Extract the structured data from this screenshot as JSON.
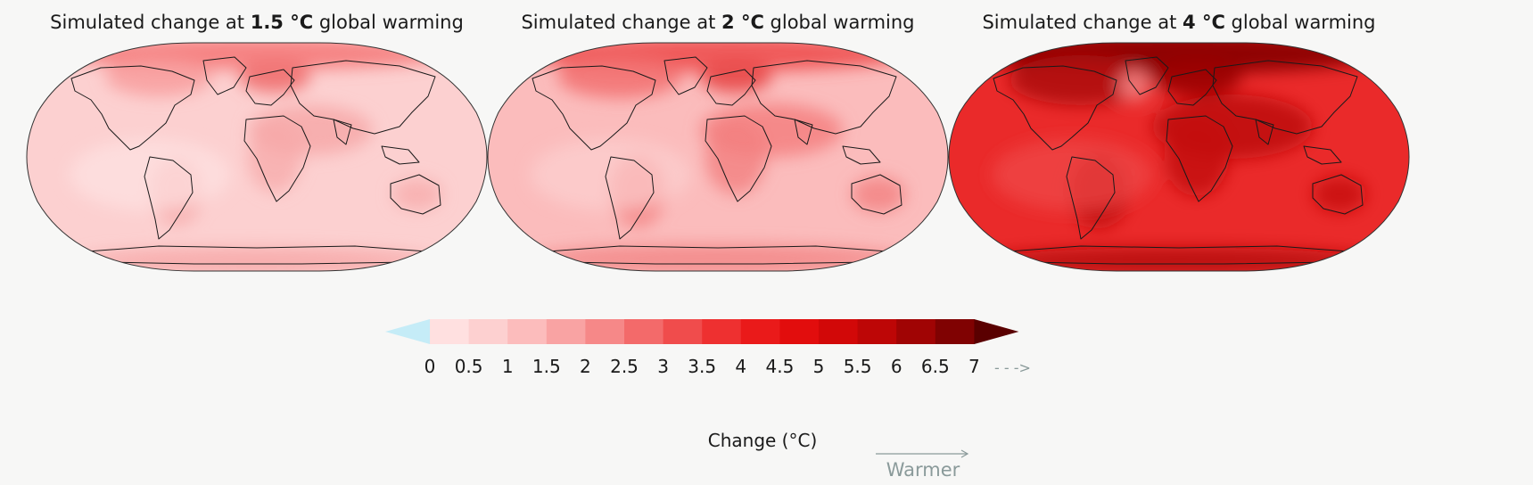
{
  "panels": [
    {
      "title_prefix": "Simulated change at",
      "level": "1.5 °C",
      "title_suffix": "global warming"
    },
    {
      "title_prefix": "Simulated change at",
      "level": "2 °C",
      "title_suffix": "global warming"
    },
    {
      "title_prefix": "Simulated change at",
      "level": "4 °C",
      "title_suffix": "global warming"
    }
  ],
  "legend": {
    "ticks": [
      "0",
      "0.5",
      "1",
      "1.5",
      "2",
      "2.5",
      "3",
      "3.5",
      "4",
      "4.5",
      "5",
      "5.5",
      "6",
      "6.5",
      "7"
    ],
    "overflow_arrow": "- - ->",
    "colors": [
      "#ffe0e0",
      "#fdd0d0",
      "#fcbcbc",
      "#f9a3a3",
      "#f68888",
      "#f36a6a",
      "#f04c4c",
      "#ee3030",
      "#ea1a1a",
      "#e20d0d",
      "#d20808",
      "#bd0606",
      "#a00404",
      "#800202",
      "#5a0000"
    ],
    "below_color": "#c5ecf7",
    "axis_title": "Change (°C)",
    "direction_label": "Warmer"
  }
}
